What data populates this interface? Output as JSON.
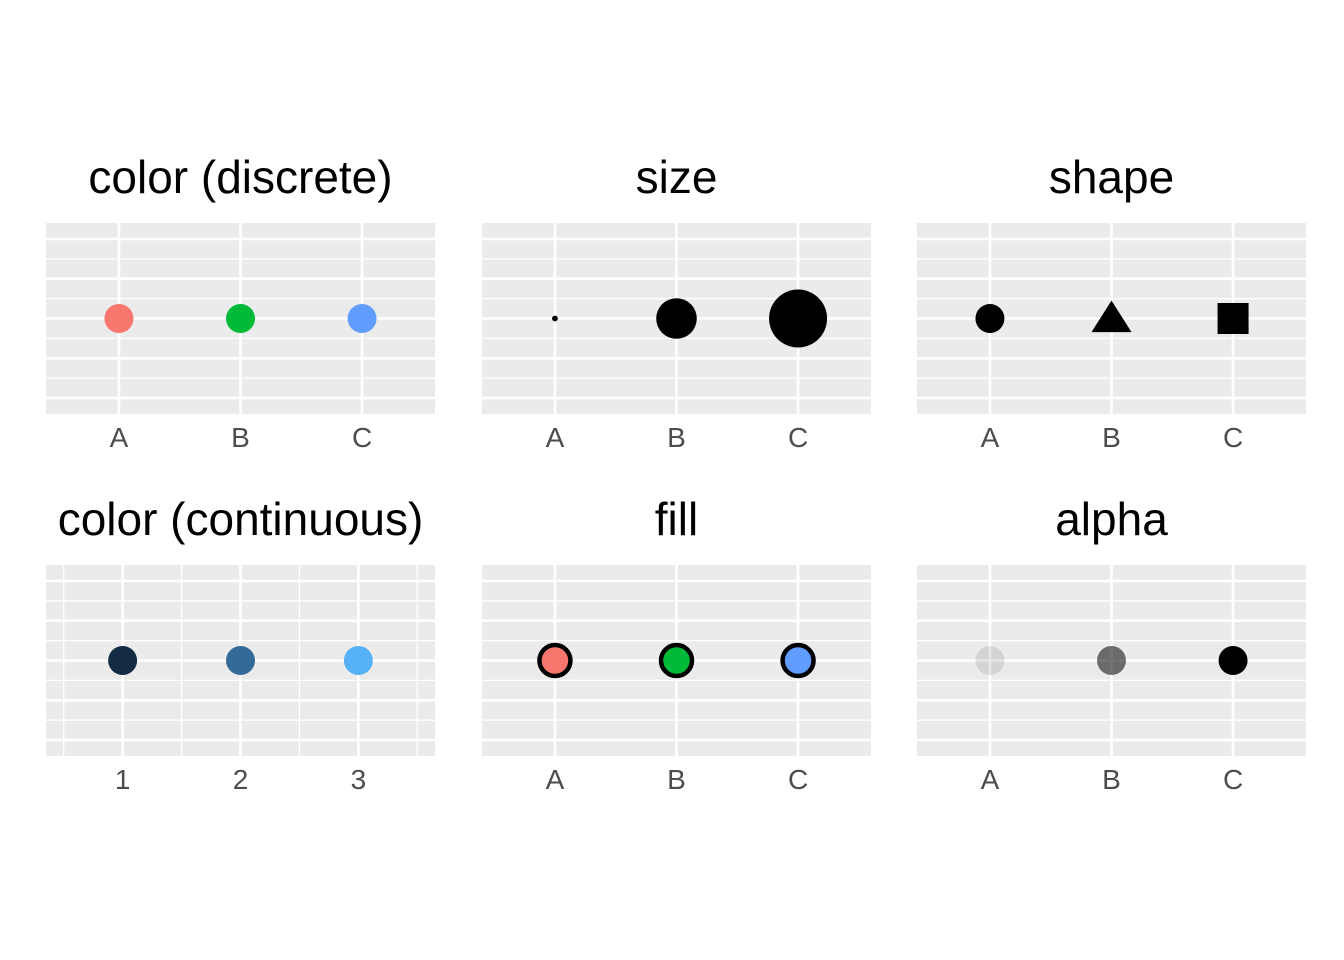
{
  "chart_data": [
    {
      "type": "scatter",
      "title": "color (discrete)",
      "aesthetic": "color",
      "scale": "discrete",
      "categories": [
        "A",
        "B",
        "C"
      ],
      "points": [
        {
          "x": "A",
          "color": "#F8766D"
        },
        {
          "x": "B",
          "color": "#00BA38"
        },
        {
          "x": "C",
          "color": "#619CFF"
        }
      ]
    },
    {
      "type": "scatter",
      "title": "size",
      "aesthetic": "size",
      "scale": "discrete",
      "categories": [
        "A",
        "B",
        "C"
      ],
      "points": [
        {
          "x": "A",
          "size": 1
        },
        {
          "x": "B",
          "size": 7
        },
        {
          "x": "C",
          "size": 10
        }
      ]
    },
    {
      "type": "scatter",
      "title": "shape",
      "aesthetic": "shape",
      "scale": "discrete",
      "categories": [
        "A",
        "B",
        "C"
      ],
      "points": [
        {
          "x": "A",
          "shape": "circle"
        },
        {
          "x": "B",
          "shape": "triangle"
        },
        {
          "x": "C",
          "shape": "square"
        }
      ]
    },
    {
      "type": "scatter",
      "title": "color (continuous)",
      "aesthetic": "color",
      "scale": "continuous",
      "categories": [
        "1",
        "2",
        "3"
      ],
      "xlim": [
        0.35,
        3.65
      ],
      "points": [
        {
          "x": 1,
          "color": "#132B43"
        },
        {
          "x": 2,
          "color": "#336A98"
        },
        {
          "x": 3,
          "color": "#56B1F7"
        }
      ]
    },
    {
      "type": "scatter",
      "title": "fill",
      "aesthetic": "fill",
      "scale": "discrete",
      "categories": [
        "A",
        "B",
        "C"
      ],
      "points": [
        {
          "x": "A",
          "fill": "#F8766D"
        },
        {
          "x": "B",
          "fill": "#00BA38"
        },
        {
          "x": "C",
          "fill": "#619CFF"
        }
      ]
    },
    {
      "type": "scatter",
      "title": "alpha",
      "aesthetic": "alpha",
      "scale": "discrete",
      "categories": [
        "A",
        "B",
        "C"
      ],
      "points": [
        {
          "x": "A",
          "alpha": 0.1
        },
        {
          "x": "B",
          "alpha": 0.55
        },
        {
          "x": "C",
          "alpha": 1.0
        }
      ]
    }
  ]
}
